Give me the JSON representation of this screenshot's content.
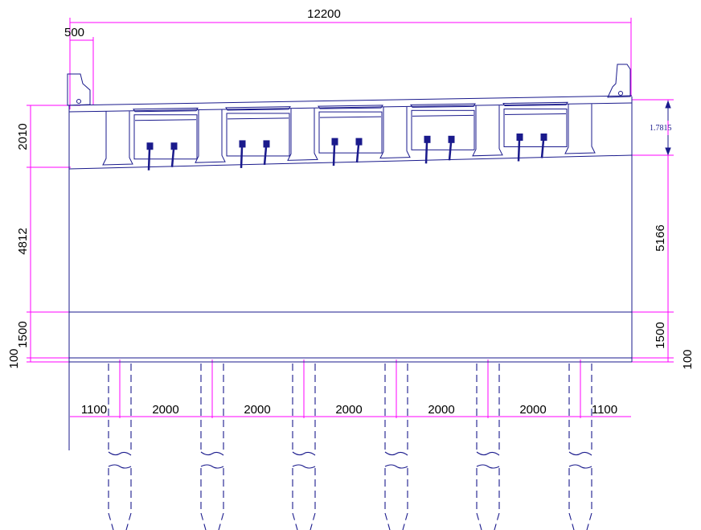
{
  "colors": {
    "structure": "#1a1a8c",
    "dimension": "#ff00ff",
    "text": "#000000",
    "background": "#ffffff"
  },
  "dimensions": {
    "total_width": "12200",
    "overhang": "500",
    "cap_height_left": "2010",
    "pier_height_left": "4812",
    "footing_left": "1500",
    "seal_left": "100",
    "slope_value": "1.7815",
    "pier_height_right": "5166",
    "footing_right": "1500",
    "seal_right": "100",
    "pile_spacing": [
      "1100",
      "2000",
      "2000",
      "2000",
      "2000",
      "2000",
      "1100"
    ]
  }
}
